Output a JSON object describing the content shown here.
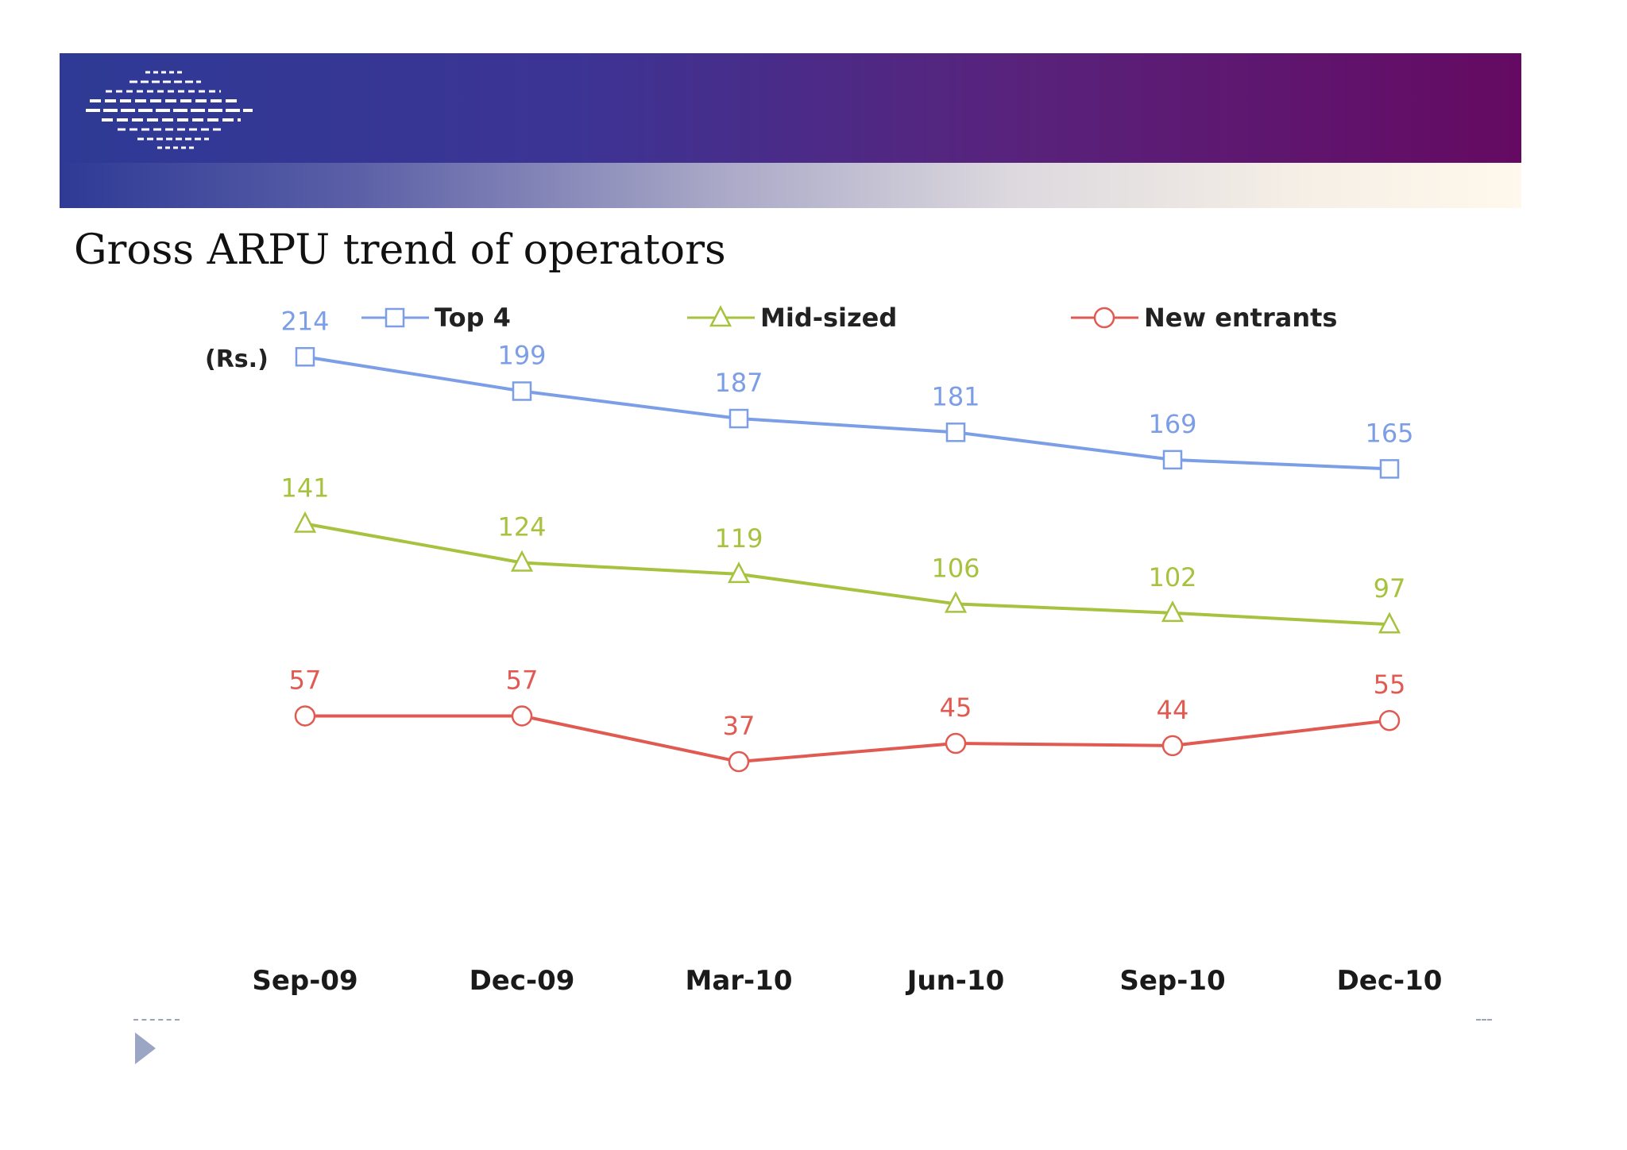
{
  "slide": {
    "title": "Gross ARPU trend of operators"
  },
  "chart_data": {
    "type": "line",
    "title": "",
    "ylabel": "(Rs.)",
    "xlabel": "",
    "categories": [
      "Sep-09",
      "Dec-09",
      "Mar-10",
      "Jun-10",
      "Sep-10",
      "Dec-10"
    ],
    "ylim": [
      0,
      240
    ],
    "grid": false,
    "legend": "top",
    "series": [
      {
        "name": "Top 4",
        "values": [
          214,
          199,
          187,
          181,
          169,
          165
        ],
        "color": "#7c9ee6",
        "marker": "square"
      },
      {
        "name": "Mid-sized",
        "values": [
          141,
          124,
          119,
          106,
          102,
          97
        ],
        "color": "#a6c23e",
        "marker": "triangle"
      },
      {
        "name": "New entrants",
        "values": [
          57,
          57,
          37,
          45,
          44,
          55
        ],
        "color": "#e05a52",
        "marker": "circle"
      }
    ]
  }
}
